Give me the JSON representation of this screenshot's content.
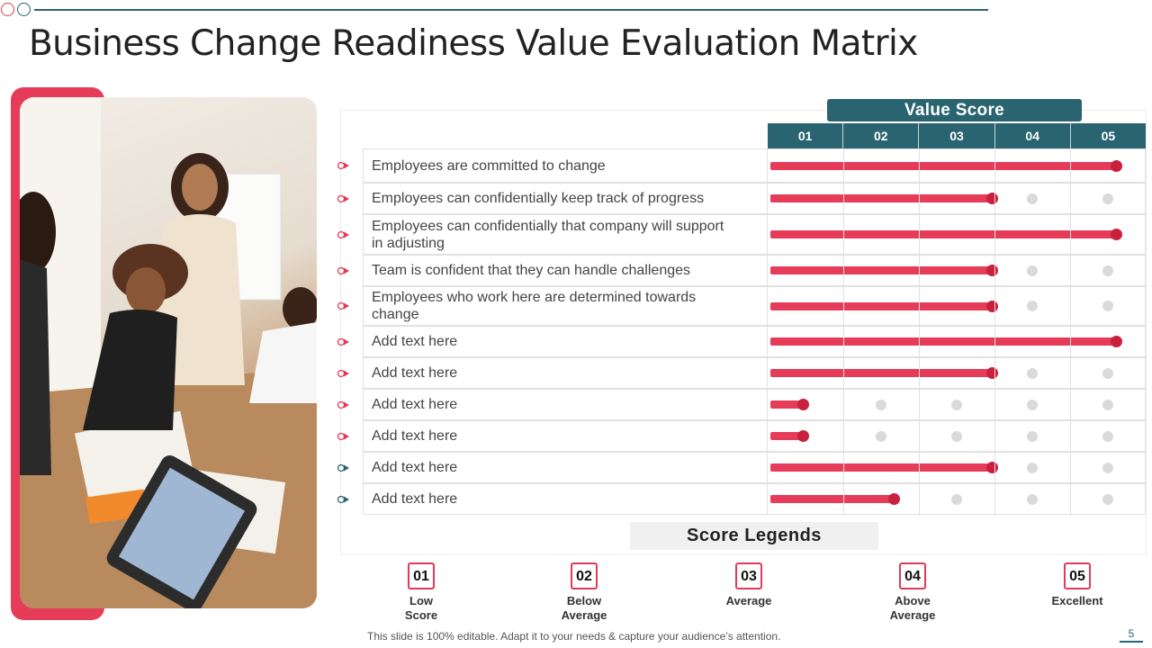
{
  "title": "Business Change Readiness Value Evaluation Matrix",
  "value_score_header": "Value Score",
  "score_columns": [
    "01",
    "02",
    "03",
    "04",
    "05"
  ],
  "colors": {
    "accent": "#e63c59",
    "accent_dark": "#c8203f",
    "teal": "#2a6470",
    "inactive_dot": "#dadada"
  },
  "chart_data": {
    "type": "bar",
    "orientation": "horizontal",
    "title": "Value Score",
    "xlim": [
      0,
      5
    ],
    "x_ticks": [
      "01",
      "02",
      "03",
      "04",
      "05"
    ],
    "categories": [
      "Employees  are committed to change",
      "Employees can confidentially  keep track of progress",
      "Employees can confidentially  that company will support in adjusting",
      "Team is confident that they can handle challenges",
      "Employees who work here are determined towards change",
      "Add text here",
      "Add text here",
      "Add text here",
      "Add text here",
      "Add text here",
      "Add text here"
    ],
    "values": [
      5,
      3,
      5,
      3,
      3,
      5,
      3,
      0.5,
      0.5,
      3,
      1.7
    ]
  },
  "legend": {
    "title": "Score Legends",
    "items": [
      {
        "num": "01",
        "label": "Low\nScore"
      },
      {
        "num": "02",
        "label": "Below\nAverage"
      },
      {
        "num": "03",
        "label": "Average"
      },
      {
        "num": "04",
        "label": "Above\nAverage"
      },
      {
        "num": "05",
        "label": "Excellent"
      }
    ]
  },
  "footer": "This slide is 100% editable. Adapt it to your needs & capture your audience’s attention.",
  "page_number": "5"
}
